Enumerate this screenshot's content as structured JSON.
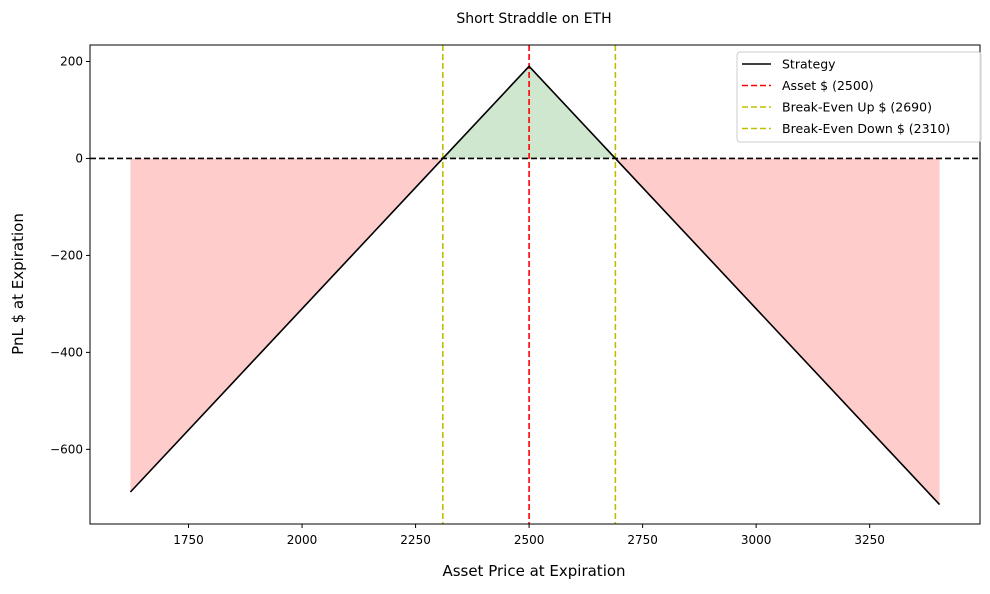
{
  "chart_data": {
    "type": "line",
    "title": "Short Straddle on ETH",
    "xlabel": "Asset Price at Expiration",
    "ylabel": "PnL $ at Expiration",
    "xlim": [
      1533,
      3493
    ],
    "ylim": [
      -754,
      234
    ],
    "xticks": [
      1750,
      2000,
      2250,
      2500,
      2750,
      3000,
      3250
    ],
    "yticks": [
      200,
      0,
      -200,
      -400,
      -600
    ],
    "ytick_labels": [
      "200",
      "0",
      "−200",
      "−400",
      "−600"
    ],
    "grid": false,
    "legend_position": "upper right",
    "series": [
      {
        "name": "Strategy",
        "color": "#000000",
        "style": "solid",
        "x": [
          1622,
          2310,
          2500,
          2690,
          3404
        ],
        "y": [
          -688,
          0,
          190,
          0,
          -714
        ]
      }
    ],
    "reference_lines": [
      {
        "name": "Asset $ (2500)",
        "orientation": "vertical",
        "value": 2500,
        "color": "#ff0000",
        "style": "dashed"
      },
      {
        "name": "Break-Even Up $ (2690)",
        "orientation": "vertical",
        "value": 2690,
        "color": "#bfbf00",
        "style": "dashed"
      },
      {
        "name": "Break-Even Down $ (2310)",
        "orientation": "vertical",
        "value": 2310,
        "color": "#bfbf00",
        "style": "dashed"
      },
      {
        "name": "zero",
        "orientation": "horizontal",
        "value": 0,
        "color": "#000000",
        "style": "dashed"
      }
    ],
    "fills": [
      {
        "region": "profit",
        "color": "#cfe6cf",
        "x_range": [
          2310,
          2690
        ]
      },
      {
        "region": "loss",
        "color": "#ffcccc",
        "x_range": [
          1622,
          2310
        ]
      },
      {
        "region": "loss",
        "color": "#ffcccc",
        "x_range": [
          2690,
          3404
        ]
      }
    ],
    "max_profit": 190,
    "legend": [
      "Strategy",
      "Asset $ (2500)",
      "Break-Even Up $ (2690)",
      "Break-Even Down $ (2310)"
    ]
  }
}
